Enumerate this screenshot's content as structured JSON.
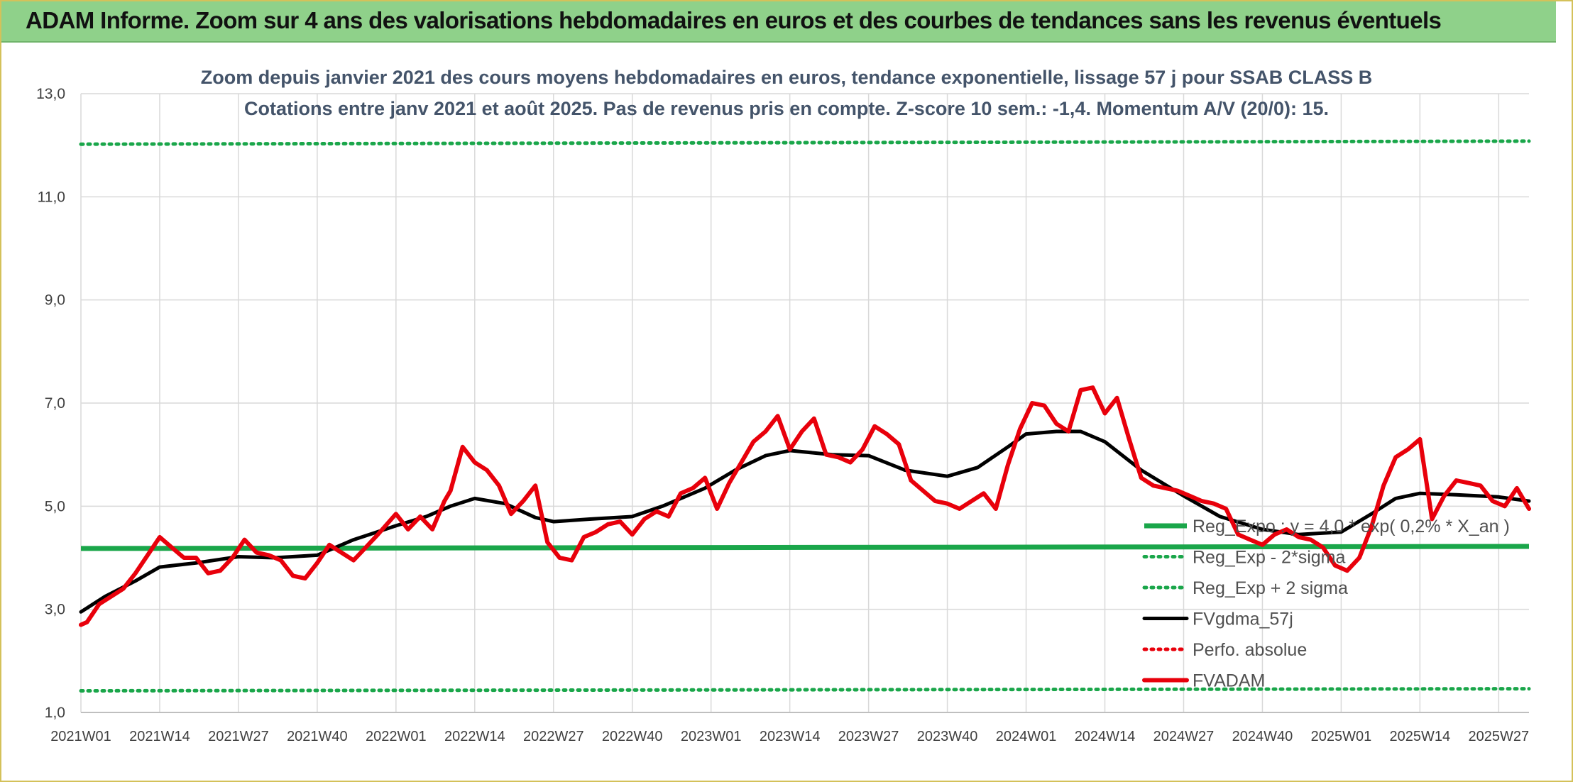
{
  "banner": {
    "title": "ADAM Informe. Zoom sur 4 ans des valorisations hebdomadaires en euros et des courbes de tendances sans les revenus éventuels",
    "color": "#8fd18a"
  },
  "chart_data": {
    "type": "line",
    "title": "Zoom depuis janvier 2021 des cours moyens hebdomadaires en euros, tendance exponentielle, lissage 57 j pour SSAB CLASS B",
    "subtitle": "Cotations entre janv 2021 et août 2025. Pas de revenus pris en compte. Z-score 10 sem.: -1,4. Momentum A/V (20/0): 15.",
    "xlabel": "",
    "ylabel": "",
    "ylim": [
      1.0,
      13.0
    ],
    "yticks": [
      "1,0",
      "3,0",
      "5,0",
      "7,0",
      "9,0",
      "11,0",
      "13,0"
    ],
    "xticks": [
      "2021W01",
      "2021W14",
      "2021W27",
      "2021W40",
      "2022W01",
      "2022W14",
      "2022W27",
      "2022W40",
      "2023W01",
      "2023W14",
      "2023W27",
      "2023W40",
      "2024W01",
      "2024W14",
      "2024W27",
      "2024W40",
      "2025W01",
      "2025W14",
      "2025W27"
    ],
    "grid": true,
    "legend_position": "bottom-right",
    "legend": [
      "Reg_Expo : y = 4,0 * exp( 0,2% *  X_an )",
      "Reg_Exp - 2*sigma",
      "Reg_Exp + 2 sigma",
      "FVgdma_57j",
      "Perfo. absolue",
      "FVADAM"
    ],
    "series": [
      {
        "name": "Reg_Expo : y = 4,0 * exp( 0,2% *  X_an )",
        "color": "#1aa64a",
        "style": "solid",
        "x": [
          "2021W01",
          "2025W32"
        ],
        "values": [
          4.18,
          4.22
        ]
      },
      {
        "name": "Reg_Exp - 2*sigma",
        "color": "#1aa64a",
        "style": "dotted",
        "x": [
          "2021W01",
          "2025W32"
        ],
        "values": [
          1.42,
          1.46
        ]
      },
      {
        "name": "Reg_Exp + 2 sigma",
        "color": "#1aa64a",
        "style": "dotted",
        "x": [
          "2021W01",
          "2025W32"
        ],
        "values": [
          12.02,
          12.08
        ]
      },
      {
        "name": "FVgdma_57j",
        "color": "#000000",
        "style": "solid",
        "x": [
          "2021W01",
          "2021W05",
          "2021W10",
          "2021W14",
          "2021W20",
          "2021W27",
          "2021W33",
          "2021W40",
          "2021W46",
          "2022W01",
          "2022W06",
          "2022W10",
          "2022W14",
          "2022W19",
          "2022W24",
          "2022W27",
          "2022W33",
          "2022W40",
          "2022W45",
          "2022W52",
          "2023W05",
          "2023W10",
          "2023W14",
          "2023W21",
          "2023W27",
          "2023W33",
          "2023W40",
          "2023W45",
          "2023W50",
          "2024W01",
          "2024W06",
          "2024W10",
          "2024W14",
          "2024W20",
          "2024W27",
          "2024W33",
          "2024W40",
          "2024W46",
          "2025W01",
          "2025W06",
          "2025W10",
          "2025W14",
          "2025W20",
          "2025W27",
          "2025W32"
        ],
        "values": [
          2.95,
          3.25,
          3.55,
          3.82,
          3.9,
          4.02,
          4.0,
          4.05,
          4.35,
          4.62,
          4.8,
          5.0,
          5.15,
          5.05,
          4.78,
          4.7,
          4.75,
          4.8,
          5.0,
          5.35,
          5.7,
          5.98,
          6.08,
          6.0,
          5.98,
          5.7,
          5.58,
          5.75,
          6.15,
          6.4,
          6.45,
          6.45,
          6.25,
          5.7,
          5.2,
          4.8,
          4.55,
          4.45,
          4.5,
          4.85,
          5.15,
          5.25,
          5.22,
          5.18,
          5.1
        ]
      },
      {
        "name": "Perfo. absolue",
        "color": "#e8000b",
        "style": "dotted",
        "x": [],
        "values": []
      },
      {
        "name": "FVADAM",
        "color": "#e8000b",
        "style": "solid",
        "x": [
          "2021W01",
          "2021W02",
          "2021W04",
          "2021W06",
          "2021W08",
          "2021W10",
          "2021W12",
          "2021W14",
          "2021W16",
          "2021W18",
          "2021W20",
          "2021W22",
          "2021W24",
          "2021W26",
          "2021W28",
          "2021W30",
          "2021W32",
          "2021W34",
          "2021W36",
          "2021W38",
          "2021W40",
          "2021W42",
          "2021W44",
          "2021W46",
          "2021W48",
          "2021W50",
          "2022W01",
          "2022W03",
          "2022W05",
          "2022W07",
          "2022W09",
          "2022W10",
          "2022W12",
          "2022W14",
          "2022W16",
          "2022W18",
          "2022W20",
          "2022W22",
          "2022W24",
          "2022W26",
          "2022W28",
          "2022W30",
          "2022W32",
          "2022W34",
          "2022W36",
          "2022W38",
          "2022W40",
          "2022W42",
          "2022W44",
          "2022W46",
          "2022W48",
          "2022W50",
          "2022W52",
          "2023W02",
          "2023W04",
          "2023W06",
          "2023W08",
          "2023W10",
          "2023W12",
          "2023W14",
          "2023W16",
          "2023W18",
          "2023W20",
          "2023W22",
          "2023W24",
          "2023W26",
          "2023W28",
          "2023W30",
          "2023W32",
          "2023W34",
          "2023W36",
          "2023W38",
          "2023W40",
          "2023W42",
          "2023W44",
          "2023W46",
          "2023W48",
          "2023W50",
          "2023W52",
          "2024W02",
          "2024W04",
          "2024W06",
          "2024W08",
          "2024W10",
          "2024W12",
          "2024W14",
          "2024W16",
          "2024W18",
          "2024W20",
          "2024W22",
          "2024W24",
          "2024W26",
          "2024W28",
          "2024W30",
          "2024W32",
          "2024W34",
          "2024W36",
          "2024W38",
          "2024W40",
          "2024W42",
          "2024W44",
          "2024W46",
          "2024W48",
          "2024W50",
          "2024W52",
          "2025W02",
          "2025W04",
          "2025W06",
          "2025W08",
          "2025W10",
          "2025W12",
          "2025W14",
          "2025W16",
          "2025W18",
          "2025W20",
          "2025W22",
          "2025W24",
          "2025W26",
          "2025W28",
          "2025W30",
          "2025W32"
        ],
        "values": [
          2.7,
          2.75,
          3.1,
          3.25,
          3.4,
          3.7,
          4.05,
          4.4,
          4.2,
          4.0,
          4.0,
          3.7,
          3.75,
          4.0,
          4.35,
          4.1,
          4.05,
          3.95,
          3.65,
          3.6,
          3.9,
          4.25,
          4.1,
          3.95,
          4.2,
          4.45,
          4.85,
          4.55,
          4.8,
          4.55,
          5.1,
          5.3,
          6.15,
          5.85,
          5.7,
          5.4,
          4.85,
          5.1,
          5.4,
          4.3,
          4.0,
          3.95,
          4.4,
          4.5,
          4.65,
          4.7,
          4.45,
          4.75,
          4.9,
          4.8,
          5.25,
          5.35,
          5.55,
          4.95,
          5.45,
          5.85,
          6.25,
          6.45,
          6.75,
          6.1,
          6.45,
          6.7,
          6.0,
          5.95,
          5.85,
          6.1,
          6.55,
          6.4,
          6.2,
          5.5,
          5.3,
          5.1,
          5.05,
          4.95,
          5.1,
          5.25,
          4.95,
          5.8,
          6.5,
          7.0,
          6.95,
          6.6,
          6.45,
          7.25,
          7.3,
          6.8,
          7.1,
          6.3,
          5.55,
          5.4,
          5.35,
          5.3,
          5.2,
          5.1,
          5.05,
          4.95,
          4.45,
          4.35,
          4.25,
          4.45,
          4.55,
          4.4,
          4.35,
          4.2,
          3.85,
          3.75,
          4.0,
          4.6,
          5.4,
          5.95,
          6.1,
          6.3,
          4.75,
          5.2,
          5.5,
          5.45,
          5.4,
          5.1,
          5.0,
          5.35,
          4.95
        ]
      }
    ]
  }
}
